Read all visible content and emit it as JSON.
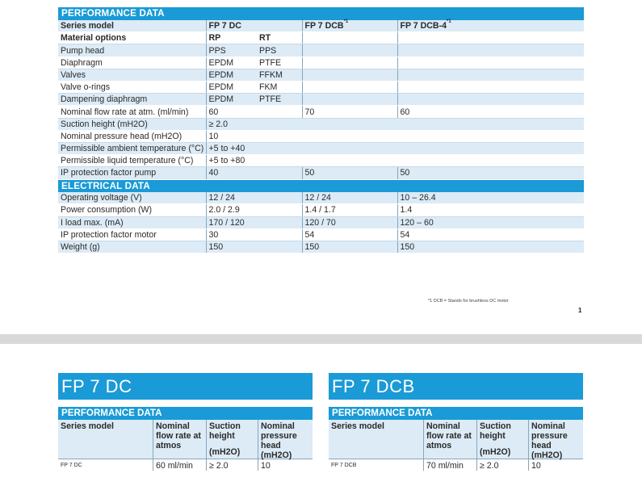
{
  "perf_heading": "PERFORMANCE DATA",
  "series_label": "Series model",
  "series": [
    "FP 7 DC",
    "FP 7 DCB",
    "FP 7 DCB-4"
  ],
  "series_marks": [
    "",
    "*1",
    "*1"
  ],
  "material_label": "Material options",
  "material_opts": [
    "RP",
    "RT"
  ],
  "perf_rows": [
    {
      "label": "Pump head",
      "a": "PPS",
      "b": "PPS",
      "c": "",
      "d": ""
    },
    {
      "label": "Diaphragm",
      "a": "EPDM",
      "b": "PTFE",
      "c": "",
      "d": ""
    },
    {
      "label": "Valves",
      "a": "EPDM",
      "b": "FFKM",
      "c": "",
      "d": ""
    },
    {
      "label": "Valve o-rings",
      "a": "EPDM",
      "b": "FKM",
      "c": "",
      "d": ""
    },
    {
      "label": "Dampening diaphragm",
      "a": "EPDM",
      "b": "PTFE",
      "c": "",
      "d": ""
    },
    {
      "label": "Nominal flow rate at atm. (ml/min)",
      "a": "60",
      "b": "",
      "c": "70",
      "d": "60"
    },
    {
      "label": "Suction height (mH2O)",
      "a": "≥ 2.0",
      "b": "",
      "c": "",
      "d": ""
    },
    {
      "label": "Nominal pressure head (mH2O)",
      "a": "10",
      "b": "",
      "c": "",
      "d": ""
    },
    {
      "label": "Permissible ambient temperature (°C)",
      "a": "+5 to +40",
      "b": "",
      "c": "",
      "d": ""
    },
    {
      "label": "Permissible liquid temperature (°C)",
      "a": "+5 to +80",
      "b": "",
      "c": "",
      "d": ""
    },
    {
      "label": "IP protection factor pump",
      "a": "40",
      "b": "",
      "c": "50",
      "d": "50"
    }
  ],
  "elec_heading": "ELECTRICAL DATA",
  "elec_rows": [
    {
      "label": "Operating voltage (V)",
      "a": "12 / 24",
      "c": "12 / 24",
      "d": "10 – 26.4"
    },
    {
      "label": "Power consumption (W)",
      "a": "2.0 / 2.9",
      "c": "1.4 / 1.7",
      "d": "1.4"
    },
    {
      "label": "I load max. (mA)",
      "a": "170 / 120",
      "c": "120 / 70",
      "d": "120 – 60"
    },
    {
      "label": "IP protection factor motor",
      "a": "30",
      "c": "54",
      "d": "54"
    },
    {
      "label": "Weight (g)",
      "a": "150",
      "c": "150",
      "d": "150"
    }
  ],
  "footnote": "*1 DCB = Stands for brushless DC motor",
  "page_number": "1",
  "products": [
    {
      "title": "FP 7 DC",
      "perf_heading": "PERFORMANCE DATA",
      "series_label": "Series model",
      "col1": "Nominal flow rate at atmos",
      "col2": "Suction height",
      "col2_unit": "(mH2O)",
      "col3": "Nominal pressure head (mH2O)",
      "model": "FP 7 DC",
      "v1": "60 ml/min",
      "v2": "≥ 2.0",
      "v3": "10"
    },
    {
      "title": "FP 7 DCB",
      "perf_heading": "PERFORMANCE DATA",
      "series_label": "Series model",
      "col1": "Nominal flow rate at atmos",
      "col2": "Suction height",
      "col2_unit": "(mH2O)",
      "col3": "Nominal pressure head (mH2O)",
      "model": "FP 7 DCB",
      "v1": "70 ml/min",
      "v2": "≥ 2.0",
      "v3": "10"
    }
  ],
  "colors": {
    "accent": "#1a9ad6",
    "row_tint": "#dcebf6"
  }
}
